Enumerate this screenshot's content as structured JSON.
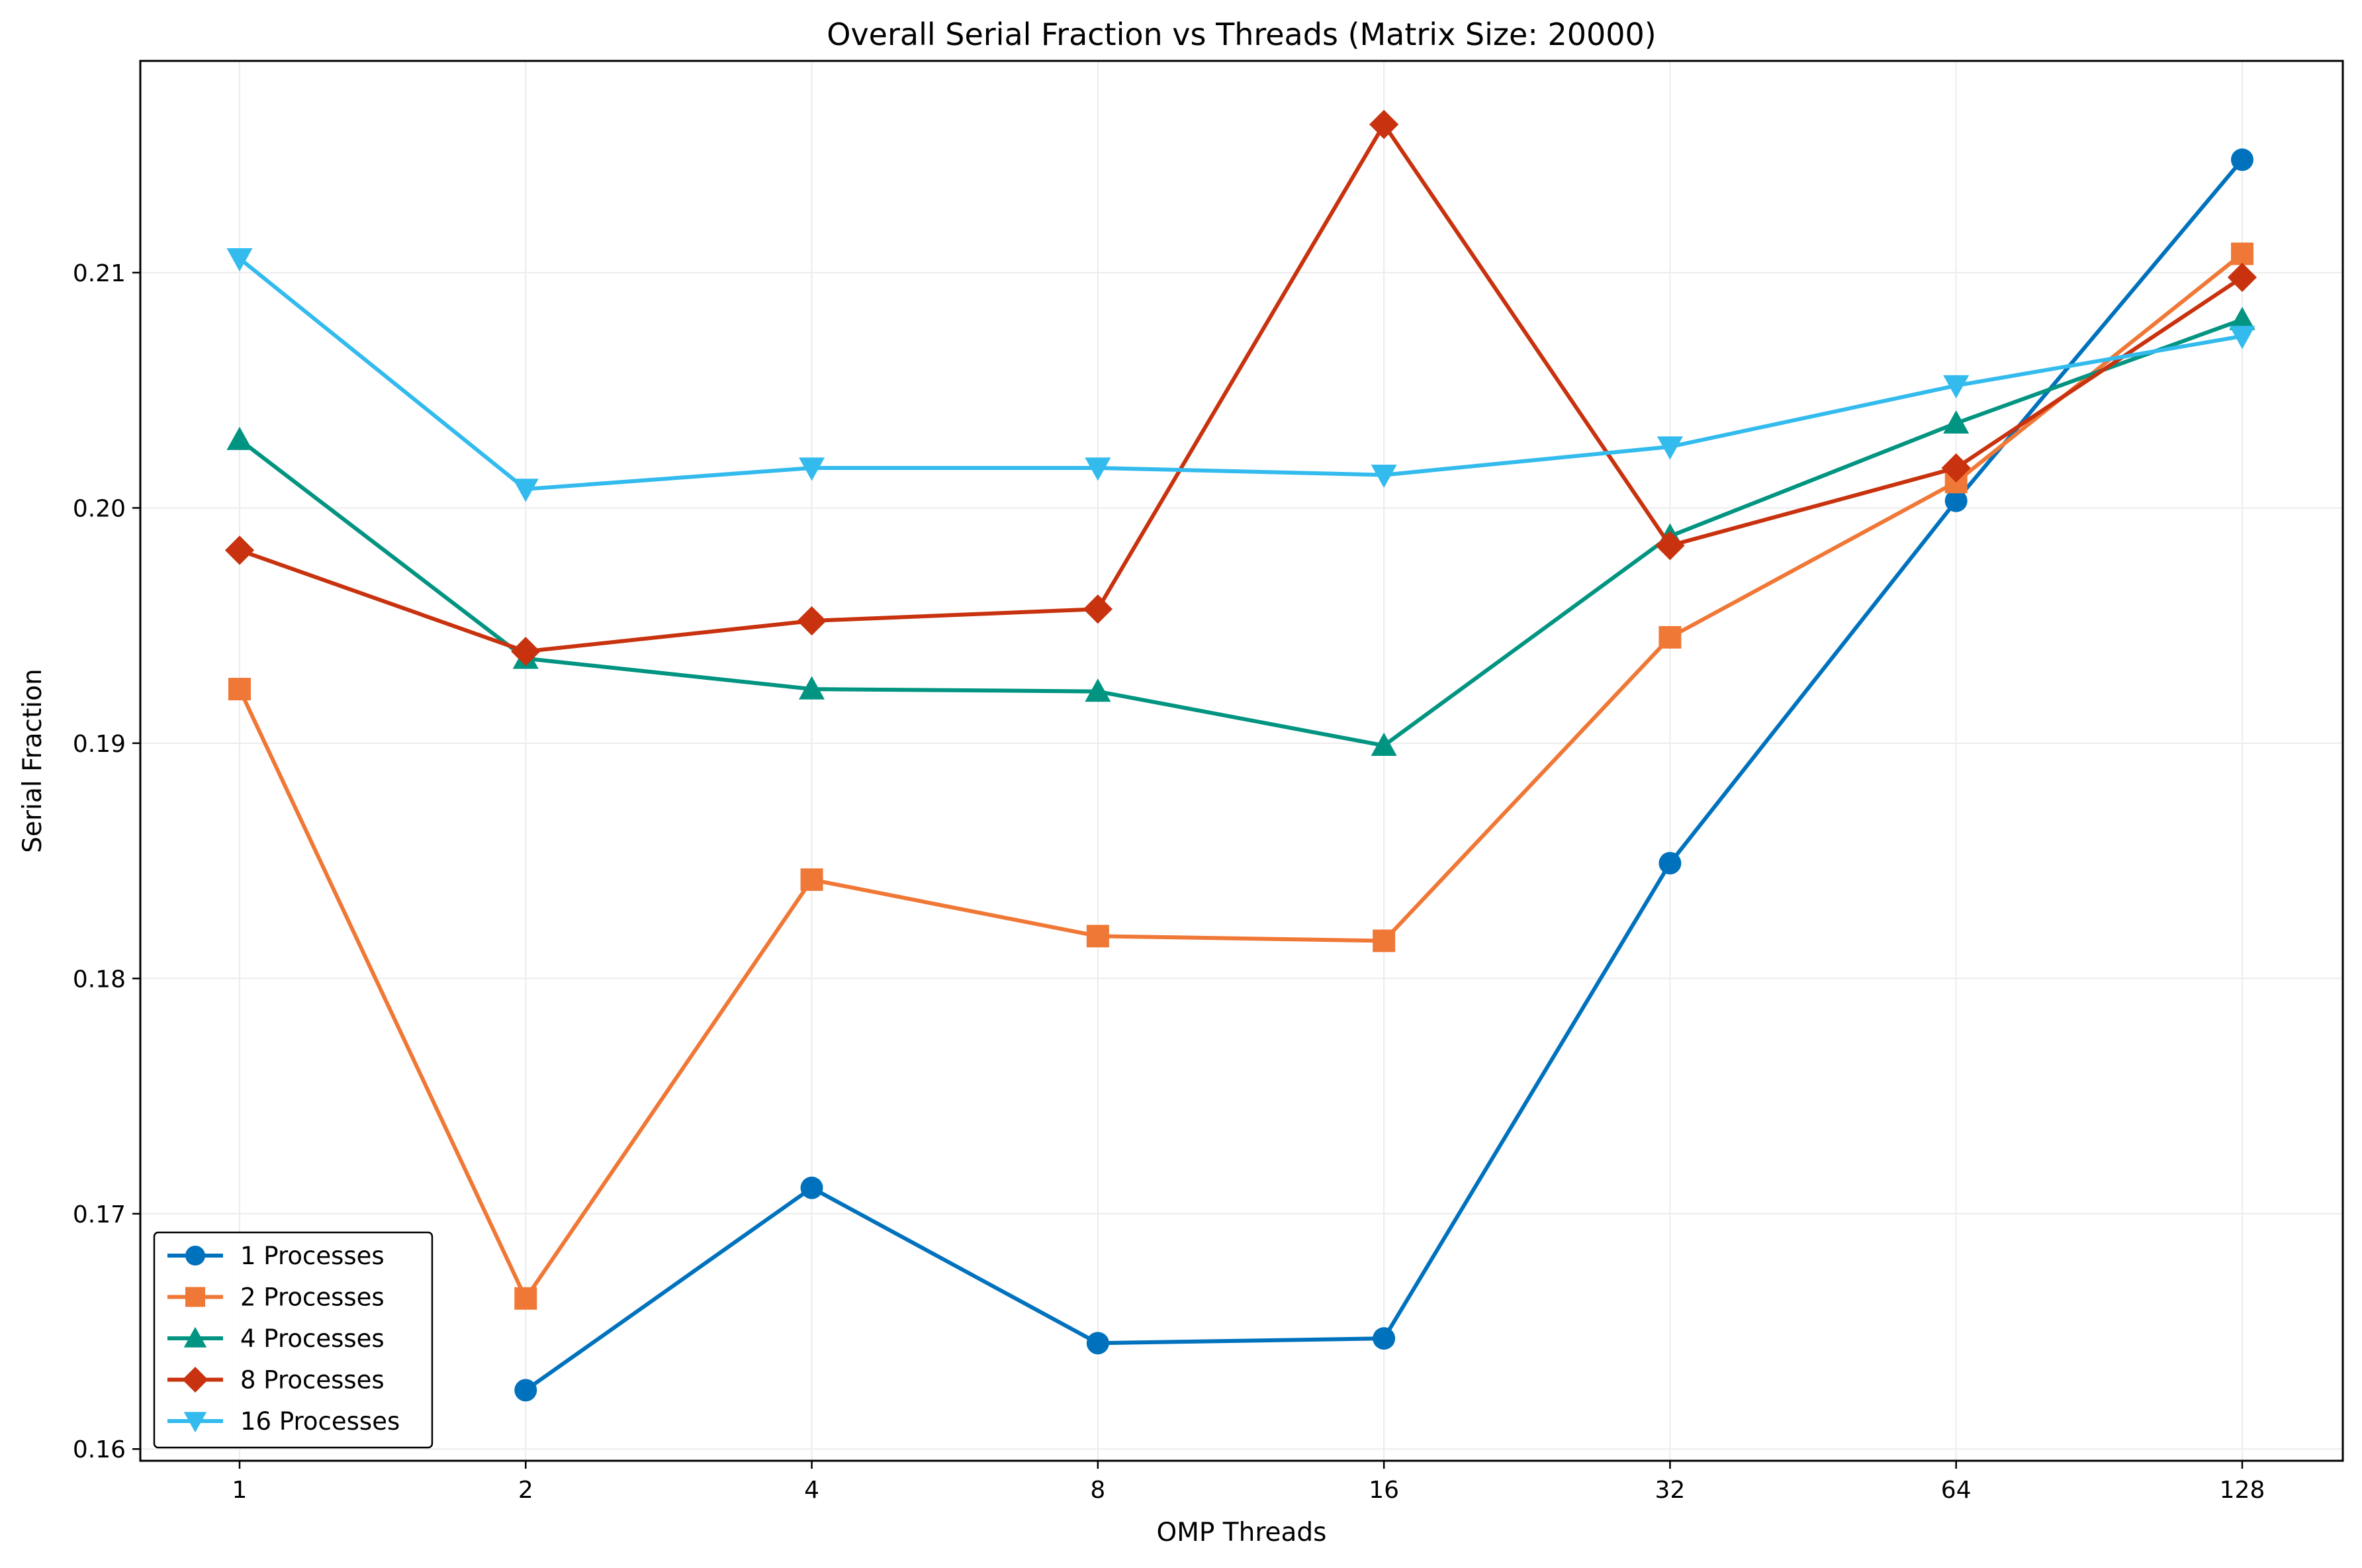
{
  "chart_data": {
    "type": "line",
    "title": "Overall Serial Fraction vs Threads (Matrix Size: 20000)",
    "xlabel": "OMP Threads",
    "ylabel": "Serial Fraction",
    "x_scale": "log2",
    "categories": [
      "1",
      "2",
      "4",
      "8",
      "16",
      "32",
      "64",
      "128"
    ],
    "x": [
      1,
      2,
      4,
      8,
      16,
      32,
      64,
      128
    ],
    "yticks": [
      "0.16",
      "0.17",
      "0.18",
      "0.19",
      "0.20",
      "0.21"
    ],
    "ylim": [
      0.1595,
      0.219
    ],
    "grid": true,
    "legend_position": "lower-left",
    "series": [
      {
        "name": "1 Processes",
        "color": "#0072bd",
        "marker": "circle",
        "x": [
          2,
          4,
          8,
          16,
          32,
          64,
          128
        ],
        "values": [
          0.1625,
          0.1711,
          0.1645,
          0.1647,
          0.1849,
          0.2003,
          0.2148
        ]
      },
      {
        "name": "2 Processes",
        "color": "#f07836",
        "marker": "square",
        "x": [
          1,
          2,
          4,
          8,
          16,
          32,
          64,
          128
        ],
        "values": [
          0.1923,
          0.1664,
          0.1842,
          0.1818,
          0.1816,
          0.1945,
          0.2011,
          0.2108
        ]
      },
      {
        "name": "4 Processes",
        "color": "#009481",
        "marker": "triangle-up",
        "x": [
          1,
          2,
          4,
          8,
          16,
          32,
          64,
          128
        ],
        "values": [
          0.2029,
          0.1936,
          0.1923,
          0.1922,
          0.1899,
          0.1988,
          0.2036,
          0.208
        ]
      },
      {
        "name": "8 Processes",
        "color": "#c8320e",
        "marker": "diamond",
        "x": [
          1,
          2,
          4,
          8,
          16,
          32,
          64,
          128
        ],
        "values": [
          0.1982,
          0.1939,
          0.1952,
          0.1957,
          0.2163,
          0.1984,
          0.2017,
          0.2098
        ]
      },
      {
        "name": "16 Processes",
        "color": "#33bbee",
        "marker": "triangle-down",
        "x": [
          1,
          2,
          4,
          8,
          16,
          32,
          64,
          128
        ],
        "values": [
          0.2106,
          0.2008,
          0.2017,
          0.2017,
          0.2014,
          0.2026,
          0.2052,
          0.2073
        ]
      }
    ]
  }
}
